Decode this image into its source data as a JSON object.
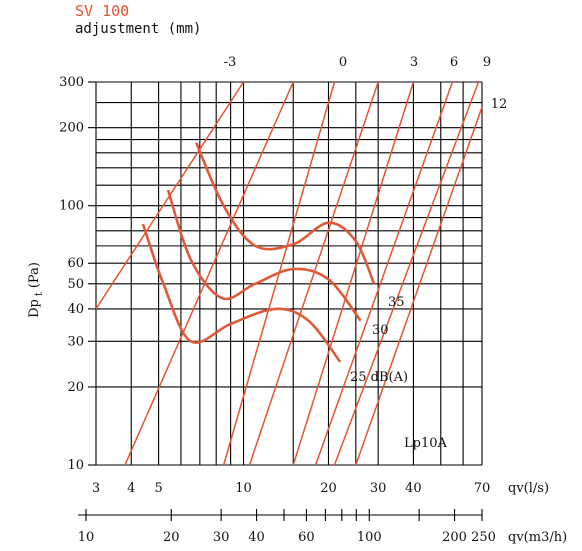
{
  "chart_data": {
    "type": "line",
    "title": "SV 100",
    "subtitle": "adjustment  (mm)",
    "colors": {
      "accent": "#e8532f",
      "grid": "#000000"
    },
    "x_axis": {
      "label": "qv(l/s)",
      "scale": "log",
      "range": [
        3,
        70
      ],
      "ticks": [
        3,
        4,
        5,
        10,
        20,
        30,
        40,
        70
      ]
    },
    "x2_axis": {
      "label": "qv(m3/h)",
      "scale": "log",
      "range": [
        10,
        250
      ],
      "ticks": [
        10,
        20,
        30,
        40,
        60,
        100,
        200,
        250
      ],
      "labeled_ticks": [
        "10",
        "20",
        "30",
        "40",
        "60",
        "100",
        "200 250"
      ]
    },
    "y_axis": {
      "label": "Dp",
      "label_sub": "t",
      "label_unit": "(Pa)",
      "scale": "log",
      "range": [
        10,
        300
      ],
      "ticks": [
        10,
        20,
        30,
        40,
        50,
        60,
        100,
        200,
        300
      ]
    },
    "adjustment_lines": [
      {
        "label": "-3",
        "points": [
          [
            3,
            40
          ],
          [
            10,
            300
          ]
        ]
      },
      {
        "label": "",
        "points": [
          [
            3.8,
            10
          ],
          [
            15,
            300
          ]
        ]
      },
      {
        "label": "0",
        "points": [
          [
            8.5,
            10
          ],
          [
            21,
            300
          ]
        ]
      },
      {
        "label": "",
        "points": [
          [
            10.5,
            10
          ],
          [
            30,
            300
          ]
        ]
      },
      {
        "label": "3",
        "points": [
          [
            15,
            10
          ],
          [
            40,
            300
          ]
        ]
      },
      {
        "label": "6",
        "points": [
          [
            18,
            10
          ],
          [
            55,
            300
          ]
        ]
      },
      {
        "label": "9",
        "points": [
          [
            21,
            10
          ],
          [
            68,
            300
          ]
        ]
      },
      {
        "label": "12",
        "points": [
          [
            25,
            10
          ],
          [
            70,
            240
          ]
        ]
      }
    ],
    "noise_curves": [
      {
        "label": "25 dB(A)",
        "points": [
          [
            4.4,
            85
          ],
          [
            5.2,
            50
          ],
          [
            6.5,
            30
          ],
          [
            9,
            35
          ],
          [
            13,
            40
          ],
          [
            17,
            36
          ],
          [
            22,
            25
          ]
        ]
      },
      {
        "label": "30",
        "points": [
          [
            5.4,
            115
          ],
          [
            6.5,
            62
          ],
          [
            8.4,
            44
          ],
          [
            11,
            50
          ],
          [
            15,
            57
          ],
          [
            20,
            52
          ],
          [
            26,
            36
          ]
        ]
      },
      {
        "label": "35",
        "points": [
          [
            6.8,
            175
          ],
          [
            8.5,
            100
          ],
          [
            11,
            70
          ],
          [
            15,
            71
          ],
          [
            20,
            86
          ],
          [
            25,
            73
          ],
          [
            29,
            50
          ]
        ]
      }
    ],
    "annotations": [
      "Lp10A"
    ]
  }
}
